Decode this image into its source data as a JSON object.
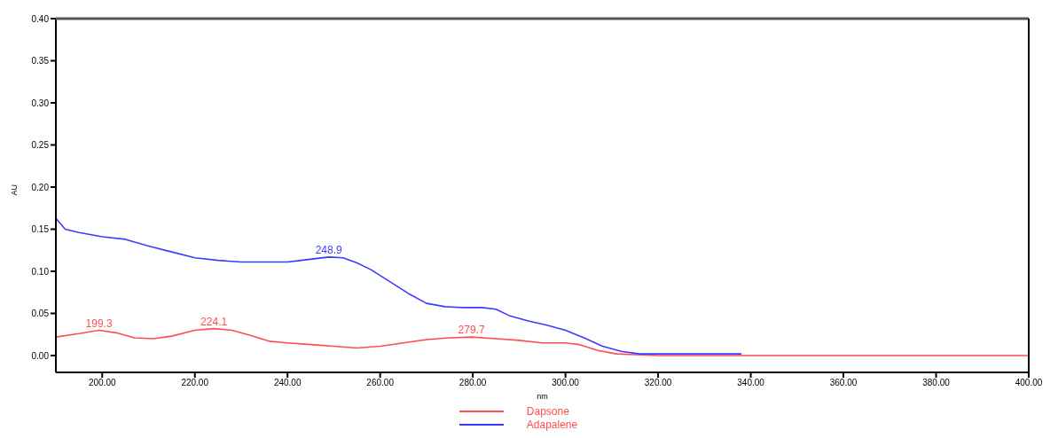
{
  "chart_data": {
    "type": "line",
    "xlabel": "nm",
    "ylabel": "AU",
    "xlim": [
      190,
      400
    ],
    "ylim": [
      -0.02,
      0.4
    ],
    "xticks": [
      {
        "value": 200,
        "label": "200.00"
      },
      {
        "value": 220,
        "label": "220.00"
      },
      {
        "value": 240,
        "label": "240.00"
      },
      {
        "value": 260,
        "label": "260.00"
      },
      {
        "value": 280,
        "label": "280.00"
      },
      {
        "value": 300,
        "label": "300.00"
      },
      {
        "value": 320,
        "label": "320.00"
      },
      {
        "value": 340,
        "label": "340.00"
      },
      {
        "value": 360,
        "label": "360.00"
      },
      {
        "value": 380,
        "label": "380.00"
      },
      {
        "value": 400,
        "label": "400.00"
      }
    ],
    "yticks": [
      {
        "value": 0,
        "label": "0.00"
      },
      {
        "value": 0.05,
        "label": "0.05"
      },
      {
        "value": 0.1,
        "label": "0.10"
      },
      {
        "value": 0.15,
        "label": "0.15"
      },
      {
        "value": 0.2,
        "label": "0.20"
      },
      {
        "value": 0.25,
        "label": "0.25"
      },
      {
        "value": 0.3,
        "label": "0.30"
      },
      {
        "value": 0.35,
        "label": "0.35"
      },
      {
        "value": 0.4,
        "label": "0.40"
      }
    ],
    "series": [
      {
        "name": "Dapsone",
        "color": "#ff4d4d",
        "x": [
          190,
          195,
          199.3,
          203,
          207,
          211,
          215,
          220,
          224.1,
          228,
          232,
          236,
          240,
          245,
          250,
          255,
          260,
          265,
          270,
          275,
          279.7,
          285,
          290,
          295,
          300,
          303,
          307,
          311,
          315,
          320,
          340,
          360,
          380,
          400
        ],
        "values": [
          0.022,
          0.026,
          0.03,
          0.027,
          0.021,
          0.02,
          0.023,
          0.03,
          0.032,
          0.03,
          0.024,
          0.017,
          0.015,
          0.013,
          0.011,
          0.009,
          0.011,
          0.015,
          0.019,
          0.021,
          0.022,
          0.02,
          0.018,
          0.015,
          0.015,
          0.013,
          0.006,
          0.002,
          0.001,
          0,
          0,
          0,
          0,
          0
        ]
      },
      {
        "name": "Adapalene",
        "color": "#3b3bff",
        "x": [
          190,
          192,
          195,
          200,
          205,
          210,
          215,
          220,
          225,
          230,
          235,
          240,
          243,
          248.9,
          252,
          255,
          258,
          262,
          266,
          270,
          274,
          278,
          282,
          285,
          288,
          292,
          296,
          300,
          304,
          308,
          312,
          316,
          320,
          330,
          338
        ],
        "values": [
          0.163,
          0.15,
          0.146,
          0.141,
          0.138,
          0.13,
          0.123,
          0.116,
          0.113,
          0.111,
          0.111,
          0.111,
          0.113,
          0.117,
          0.116,
          0.11,
          0.102,
          0.088,
          0.074,
          0.062,
          0.058,
          0.057,
          0.057,
          0.055,
          0.047,
          0.041,
          0.036,
          0.03,
          0.021,
          0.011,
          0.005,
          0.002,
          0.002,
          0.002,
          0.002
        ]
      }
    ],
    "annotations": [
      {
        "text": "199.3",
        "x": 199.3,
        "y": 0.03
      },
      {
        "text": "224.1",
        "x": 224.1,
        "y": 0.032
      },
      {
        "text": "248.9",
        "x": 248.9,
        "y": 0.117
      },
      {
        "text": "279.7",
        "x": 279.7,
        "y": 0.022
      }
    ],
    "legend": "bottom",
    "grid": false,
    "marker": "none",
    "line_style": "solid"
  }
}
